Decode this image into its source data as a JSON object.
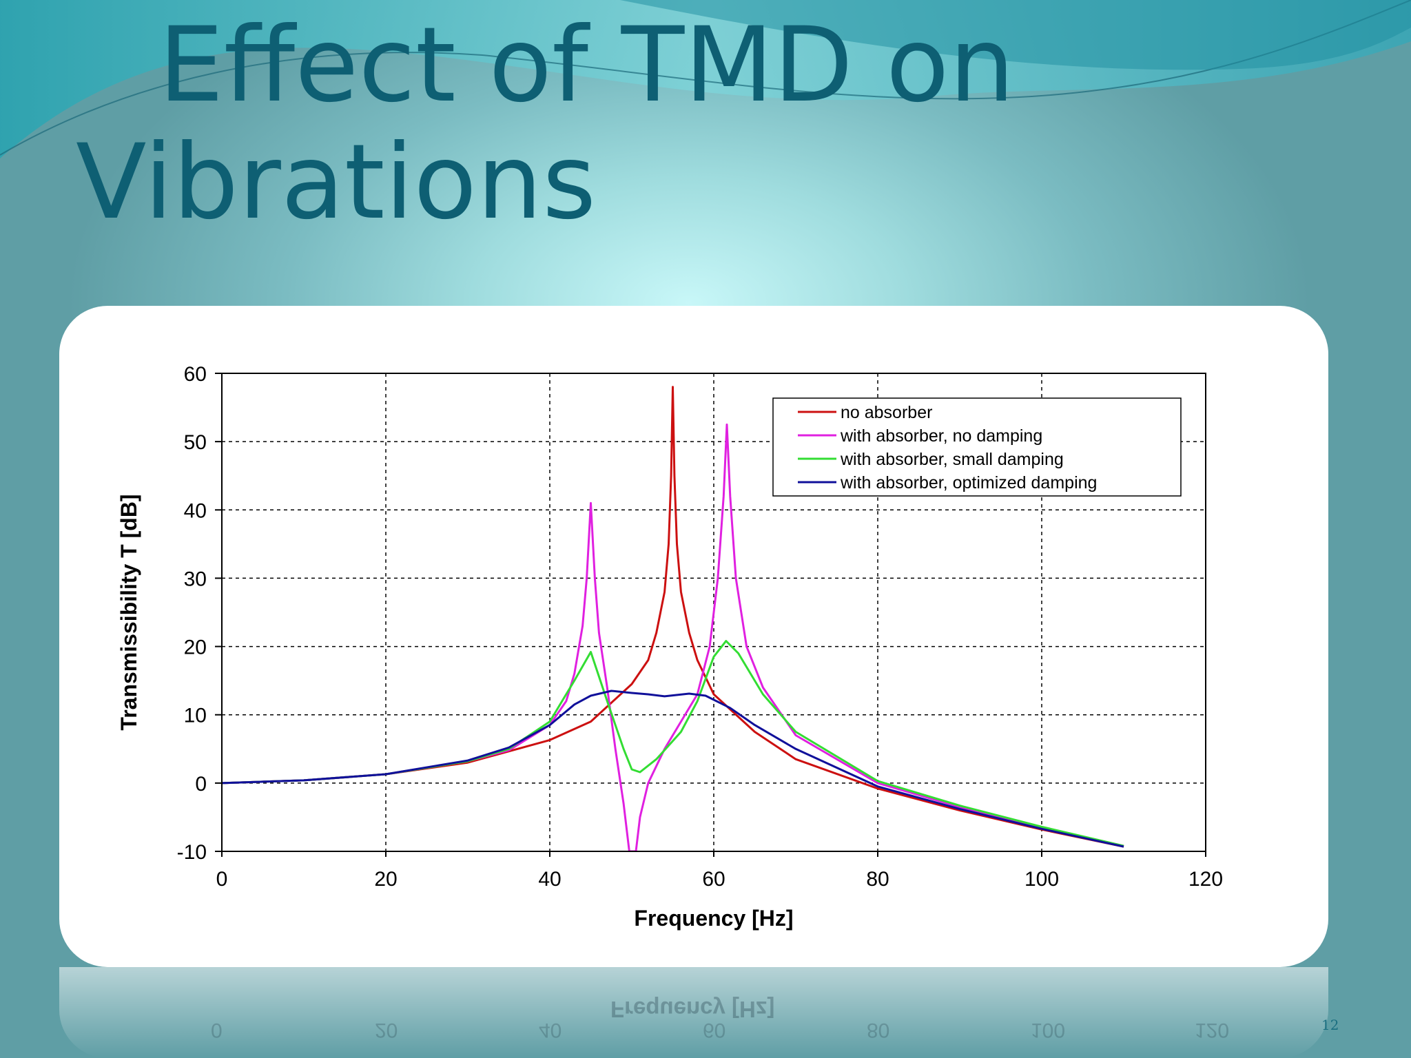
{
  "slide": {
    "title_line1": "Effect of TMD on",
    "title_line2": "Vibrations",
    "page_number": "12",
    "reflection_label": "Frequency [Hz]",
    "reflection_ticks": [
      "0",
      "20",
      "40",
      "60",
      "80",
      "100",
      "120"
    ]
  },
  "colors": {
    "title": "#0e5f73",
    "no_absorber": "#cc1010",
    "no_damping": "#e020e0",
    "small_damping": "#33dd33",
    "optimized_damping": "#10109a"
  },
  "chart_data": {
    "type": "line",
    "title": "",
    "xlabel": "Frequency [Hz]",
    "ylabel": "Transmissibility T [dB]",
    "xlim": [
      0,
      120
    ],
    "ylim": [
      -10,
      60
    ],
    "x_ticks": [
      0,
      20,
      40,
      60,
      80,
      100,
      120
    ],
    "y_ticks": [
      -10,
      0,
      10,
      20,
      30,
      40,
      50,
      60
    ],
    "x_tick_labels": [
      "0",
      "20",
      "40",
      "60",
      "80",
      "100",
      "120"
    ],
    "y_tick_labels": [
      "-10",
      "0",
      "10",
      "20",
      "30",
      "40",
      "50",
      "60"
    ],
    "grid": true,
    "grid_style": "dashed",
    "legend_position": "top-right",
    "series": [
      {
        "name": "no absorber",
        "color": "#cc1010",
        "points": [
          [
            0,
            0
          ],
          [
            10,
            0.4
          ],
          [
            20,
            1.3
          ],
          [
            30,
            3.0
          ],
          [
            40,
            6.3
          ],
          [
            45,
            9.0
          ],
          [
            50,
            14.5
          ],
          [
            52,
            18
          ],
          [
            53,
            22
          ],
          [
            54,
            28
          ],
          [
            54.5,
            35
          ],
          [
            54.8,
            45
          ],
          [
            55,
            58
          ],
          [
            55.2,
            45
          ],
          [
            55.5,
            35
          ],
          [
            56,
            28
          ],
          [
            57,
            22
          ],
          [
            58,
            18
          ],
          [
            60,
            13
          ],
          [
            65,
            7.5
          ],
          [
            70,
            3.5
          ],
          [
            80,
            -0.8
          ],
          [
            90,
            -4.0
          ],
          [
            100,
            -6.8
          ],
          [
            110,
            -9.3
          ]
        ]
      },
      {
        "name": "with absorber, no damping",
        "color": "#e020e0",
        "points": [
          [
            0,
            0
          ],
          [
            10,
            0.4
          ],
          [
            20,
            1.3
          ],
          [
            30,
            3.2
          ],
          [
            35,
            4.8
          ],
          [
            40,
            8.5
          ],
          [
            42,
            12
          ],
          [
            43,
            16
          ],
          [
            44,
            23
          ],
          [
            44.5,
            30
          ],
          [
            45,
            41
          ],
          [
            45.5,
            30
          ],
          [
            46,
            22
          ],
          [
            47,
            14
          ],
          [
            48,
            5
          ],
          [
            49,
            -3
          ],
          [
            49.7,
            -10
          ],
          [
            50.5,
            -10
          ],
          [
            51,
            -5
          ],
          [
            52,
            0
          ],
          [
            54,
            5
          ],
          [
            56,
            9
          ],
          [
            58,
            13
          ],
          [
            59.5,
            20
          ],
          [
            60.5,
            30
          ],
          [
            61.2,
            42
          ],
          [
            61.6,
            52.5
          ],
          [
            62,
            42
          ],
          [
            62.7,
            30
          ],
          [
            64,
            20
          ],
          [
            66,
            14
          ],
          [
            70,
            7
          ],
          [
            80,
            0
          ],
          [
            90,
            -3.5
          ],
          [
            100,
            -6.5
          ],
          [
            110,
            -9.2
          ]
        ]
      },
      {
        "name": "with absorber, small damping",
        "color": "#33dd33",
        "points": [
          [
            0,
            0
          ],
          [
            10,
            0.4
          ],
          [
            20,
            1.3
          ],
          [
            30,
            3.2
          ],
          [
            35,
            5
          ],
          [
            40,
            9
          ],
          [
            43,
            15
          ],
          [
            45,
            19.2
          ],
          [
            47,
            12
          ],
          [
            49,
            5
          ],
          [
            50,
            2
          ],
          [
            51,
            1.6
          ],
          [
            53,
            3.5
          ],
          [
            56,
            7.5
          ],
          [
            58,
            12
          ],
          [
            60,
            18.5
          ],
          [
            61.5,
            20.8
          ],
          [
            63,
            19
          ],
          [
            66,
            13
          ],
          [
            70,
            7.5
          ],
          [
            80,
            0.3
          ],
          [
            90,
            -3.3
          ],
          [
            100,
            -6.4
          ],
          [
            110,
            -9.2
          ]
        ]
      },
      {
        "name": "with absorber, optimized damping",
        "color": "#10109a",
        "points": [
          [
            0,
            0
          ],
          [
            10,
            0.4
          ],
          [
            20,
            1.3
          ],
          [
            30,
            3.3
          ],
          [
            35,
            5.2
          ],
          [
            40,
            8.5
          ],
          [
            43,
            11.5
          ],
          [
            45,
            12.8
          ],
          [
            47.5,
            13.5
          ],
          [
            50,
            13.2
          ],
          [
            52,
            13
          ],
          [
            54,
            12.7
          ],
          [
            57,
            13.1
          ],
          [
            59,
            12.8
          ],
          [
            62,
            11
          ],
          [
            65,
            8.5
          ],
          [
            70,
            5
          ],
          [
            80,
            -0.5
          ],
          [
            90,
            -3.8
          ],
          [
            100,
            -6.7
          ],
          [
            110,
            -9.3
          ]
        ]
      }
    ]
  }
}
